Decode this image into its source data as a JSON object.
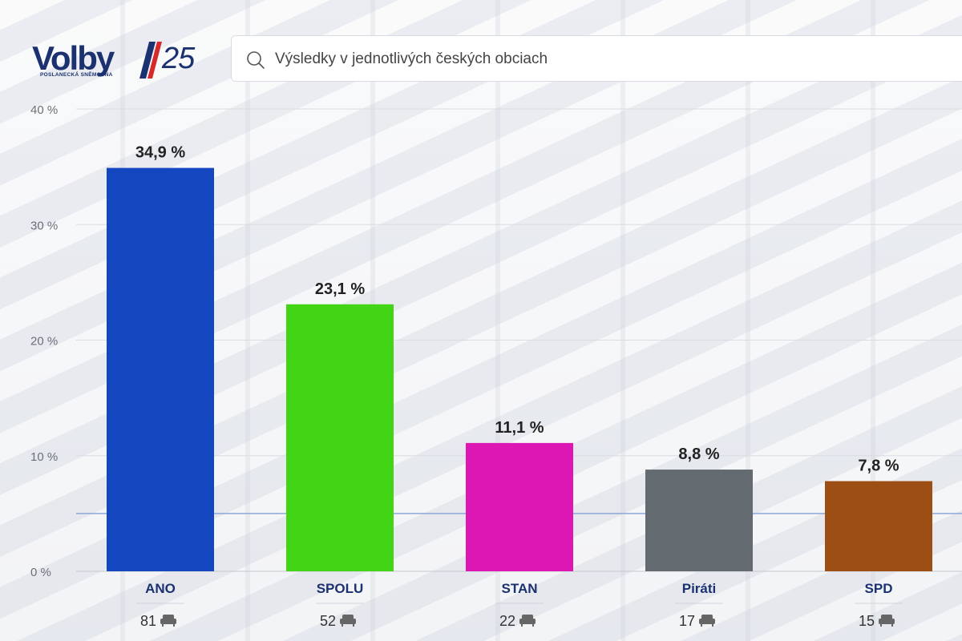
{
  "header": {
    "logo_text": "Volby",
    "logo_number": "25",
    "logo_subtitle": "POSLANECKÁ SNĚMOVNA",
    "logo_colors": [
      "#1c3270",
      "#d62a2a"
    ],
    "search_placeholder": "Výsledky v jednotlivých českých obciach",
    "search_icon": "search-icon"
  },
  "chart_data": {
    "type": "bar",
    "categories": [
      "ANO",
      "SPOLU",
      "STAN",
      "Piráti",
      "SPD"
    ],
    "values": [
      34.9,
      23.1,
      11.1,
      8.8,
      7.8
    ],
    "value_labels": [
      "34,9 %",
      "23,1 %",
      "11,1 %",
      "8,8 %",
      "7,8 %"
    ],
    "colors": [
      "#1346bf",
      "#42d515",
      "#dd17b3",
      "#636b70",
      "#9c4e15"
    ],
    "seats": [
      "81",
      "52",
      "22",
      "17",
      "15"
    ],
    "seat_icon": "seat-icon",
    "yticks": [
      0,
      10,
      20,
      30,
      40
    ],
    "ytick_labels": [
      "0 %",
      "10 %",
      "20 %",
      "30 %",
      "40 %"
    ],
    "ylim": [
      0,
      40
    ],
    "threshold": 5,
    "threshold_color": "#8ea8d6",
    "grid": true,
    "title": "",
    "xlabel": "",
    "ylabel": ""
  }
}
